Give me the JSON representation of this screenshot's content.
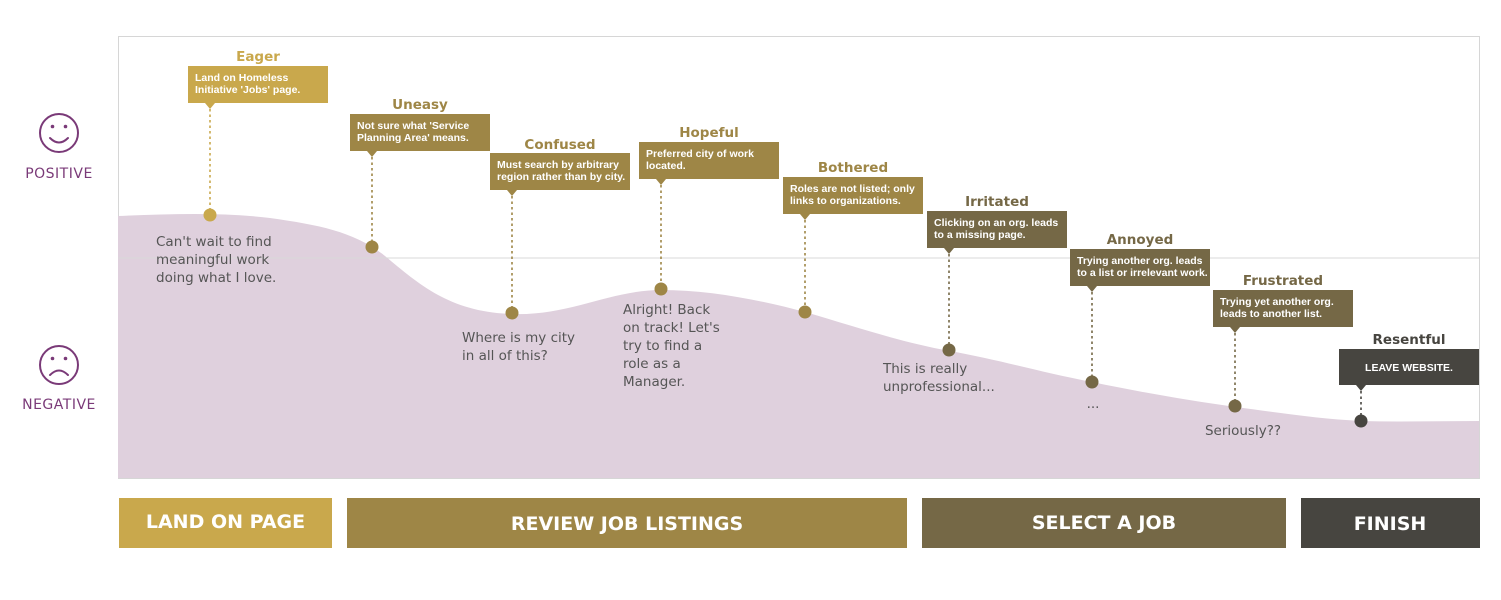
{
  "axis": {
    "positive_label": "POSITIVE",
    "negative_label": "NEGATIVE"
  },
  "colors": {
    "curve_fill": "#dfd0dd",
    "axis_purple": "#7a3a78",
    "stage_land": "#c9a84c",
    "stage_review": "#9e8646",
    "stage_select": "#756846",
    "stage_finish": "#474540"
  },
  "icons": {
    "positive": "smiley-face-icon",
    "negative": "frowning-face-icon"
  },
  "journey_points": [
    {
      "emotion": "Eager",
      "callout": [
        "Land on Homeless",
        "Initiative 'Jobs' page."
      ],
      "thought": [
        "Can't wait to find",
        "meaningful work",
        "doing what I love."
      ]
    },
    {
      "emotion": "Uneasy",
      "callout": [
        "Not sure what 'Service",
        "Planning Area' means."
      ],
      "thought": []
    },
    {
      "emotion": "Confused",
      "callout": [
        "Must search by arbitrary",
        "region rather than by city."
      ],
      "thought": [
        "Where is my city",
        "in all of this?"
      ]
    },
    {
      "emotion": "Hopeful",
      "callout": [
        "Preferred city of work",
        "located."
      ],
      "thought": [
        "Alright! Back",
        "on track! Let's",
        "try to find a",
        "role as a",
        "Manager."
      ]
    },
    {
      "emotion": "Bothered",
      "callout": [
        "Roles are not listed; only",
        "links to organizations."
      ],
      "thought": []
    },
    {
      "emotion": "Irritated",
      "callout": [
        "Clicking on an org. leads",
        "to a missing page."
      ],
      "thought": [
        "This is really",
        "unprofessional..."
      ]
    },
    {
      "emotion": "Annoyed",
      "callout": [
        "Trying another org. leads",
        "to a list or irrelevant work."
      ],
      "thought": [
        "..."
      ]
    },
    {
      "emotion": "Frustrated",
      "callout": [
        "Trying yet another org.",
        "leads to another list."
      ],
      "thought": [
        "Seriously??"
      ]
    },
    {
      "emotion": "Resentful",
      "callout": [
        "LEAVE WEBSITE."
      ],
      "thought": []
    }
  ],
  "stages": [
    {
      "label": "LAND ON PAGE"
    },
    {
      "label": "REVIEW JOB LISTINGS"
    },
    {
      "label": "SELECT A JOB"
    },
    {
      "label": "FINISH"
    }
  ]
}
